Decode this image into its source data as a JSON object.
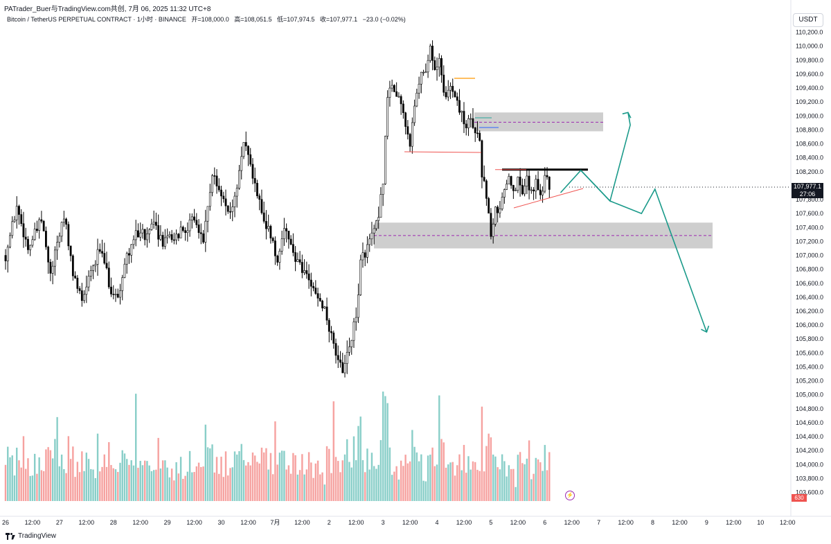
{
  "header": {
    "author_line": "PATrader_Buer与TradingView.com共创,  7月 06, 2025 11:32 UTC+8",
    "symbol": "Bitcoin / TetherUS PERPETUAL CONTRACT · 1小时 · BINANCE",
    "open": "开=108,000.0",
    "high": "高=108,051.5",
    "low": "低=107,974.5",
    "close": "收=107,977.1",
    "change": "−23.0 (−0.02%)"
  },
  "currency_button": "USDT",
  "last_price": {
    "value": "107,977.1",
    "countdown": "27:06"
  },
  "volume_tag": "630",
  "brand": "TradingView",
  "colors": {
    "up": "#26a69a",
    "down": "#ef5350",
    "candle": "#000000",
    "projection": "#1a9a8a"
  },
  "chart_data": {
    "type": "candlestick",
    "timeframe": "1小时",
    "ylim": [
      103500,
      110400
    ],
    "y_ticks": [
      103600,
      103800,
      104000,
      104200,
      104400,
      104600,
      104800,
      105000,
      105200,
      105400,
      105600,
      105800,
      106000,
      106200,
      106400,
      106600,
      106800,
      107000,
      107200,
      107400,
      107600,
      107800,
      108000,
      108200,
      108400,
      108600,
      108800,
      109000,
      109200,
      109400,
      109600,
      109800,
      110000,
      110200
    ],
    "y_tick_labels": [
      "103,600.0",
      "103,800.0",
      "104,000.0",
      "104,200.0",
      "104,400.0",
      "104,600.0",
      "104,800.0",
      "105,000.0",
      "105,200.0",
      "105,400.0",
      "105,600.0",
      "105,800.0",
      "106,000.0",
      "106,200.0",
      "106,400.0",
      "106,600.0",
      "106,800.0",
      "107,000.0",
      "107,200.0",
      "107,400.0",
      "107,600.0",
      "107,800.0",
      "108,000.0",
      "108,200.0",
      "108,400.0",
      "108,600.0",
      "108,800.0",
      "109,000.0",
      "109,200.0",
      "109,400.0",
      "109,600.0",
      "109,800.0",
      "110,000.0",
      "110,200.0"
    ],
    "x_ticks": [
      {
        "t": 0,
        "label": "26"
      },
      {
        "t": 12,
        "label": "12:00"
      },
      {
        "t": 24,
        "label": "27"
      },
      {
        "t": 36,
        "label": "12:00"
      },
      {
        "t": 48,
        "label": "28"
      },
      {
        "t": 60,
        "label": "12:00"
      },
      {
        "t": 72,
        "label": "29"
      },
      {
        "t": 84,
        "label": "12:00"
      },
      {
        "t": 96,
        "label": "30"
      },
      {
        "t": 108,
        "label": "12:00"
      },
      {
        "t": 120,
        "label": "7月"
      },
      {
        "t": 132,
        "label": "12:00"
      },
      {
        "t": 144,
        "label": "2"
      },
      {
        "t": 156,
        "label": "12:00"
      },
      {
        "t": 168,
        "label": "3"
      },
      {
        "t": 180,
        "label": "12:00"
      },
      {
        "t": 192,
        "label": "4"
      },
      {
        "t": 204,
        "label": "12:00"
      },
      {
        "t": 216,
        "label": "5"
      },
      {
        "t": 228,
        "label": "12:00"
      },
      {
        "t": 240,
        "label": "6"
      },
      {
        "t": 252,
        "label": "12:00"
      },
      {
        "t": 264,
        "label": "7"
      },
      {
        "t": 276,
        "label": "12:00"
      },
      {
        "t": 288,
        "label": "8"
      },
      {
        "t": 300,
        "label": "12:00"
      },
      {
        "t": 312,
        "label": "9"
      },
      {
        "t": 324,
        "label": "12:00"
      },
      {
        "t": 336,
        "label": "10"
      },
      {
        "t": 348,
        "label": "12:00"
      }
    ],
    "price_path": [
      [
        0,
        107000
      ],
      [
        5,
        107700
      ],
      [
        10,
        107100
      ],
      [
        16,
        107500
      ],
      [
        20,
        106700
      ],
      [
        26,
        107600
      ],
      [
        30,
        106700
      ],
      [
        34,
        106400
      ],
      [
        38,
        106800
      ],
      [
        42,
        107100
      ],
      [
        47,
        106500
      ],
      [
        50,
        106400
      ],
      [
        54,
        107000
      ],
      [
        58,
        107300
      ],
      [
        62,
        107300
      ],
      [
        66,
        107400
      ],
      [
        70,
        107200
      ],
      [
        76,
        107300
      ],
      [
        84,
        107500
      ],
      [
        88,
        107200
      ],
      [
        92,
        108200
      ],
      [
        96,
        107800
      ],
      [
        100,
        107600
      ],
      [
        103,
        108000
      ],
      [
        106,
        108700
      ],
      [
        110,
        108100
      ],
      [
        114,
        107600
      ],
      [
        118,
        107300
      ],
      [
        121,
        106900
      ],
      [
        124,
        107400
      ],
      [
        128,
        107000
      ],
      [
        132,
        106800
      ],
      [
        136,
        106600
      ],
      [
        140,
        106400
      ],
      [
        143,
        106100
      ],
      [
        146,
        105700
      ],
      [
        150,
        105300
      ],
      [
        153,
        105700
      ],
      [
        156,
        106100
      ],
      [
        158,
        106900
      ],
      [
        162,
        107200
      ],
      [
        166,
        107500
      ],
      [
        168,
        108100
      ],
      [
        170,
        109200
      ],
      [
        172,
        109500
      ],
      [
        176,
        109200
      ],
      [
        180,
        108600
      ],
      [
        182,
        109100
      ],
      [
        185,
        109600
      ],
      [
        187,
        109700
      ],
      [
        189,
        110000
      ],
      [
        191,
        109600
      ],
      [
        193,
        109800
      ],
      [
        196,
        109200
      ],
      [
        198,
        109500
      ],
      [
        201,
        109200
      ],
      [
        203,
        109000
      ],
      [
        205,
        108900
      ],
      [
        208,
        108900
      ],
      [
        211,
        108700
      ],
      [
        212,
        108200
      ],
      [
        214,
        107800
      ],
      [
        216,
        107300
      ],
      [
        218,
        107700
      ],
      [
        220,
        107600
      ],
      [
        222,
        108000
      ],
      [
        224,
        108200
      ],
      [
        226,
        107900
      ],
      [
        228,
        108100
      ],
      [
        230,
        107900
      ],
      [
        232,
        108100
      ],
      [
        234,
        107900
      ],
      [
        236,
        108100
      ],
      [
        238,
        107900
      ],
      [
        240,
        108100
      ],
      [
        242,
        108000
      ]
    ],
    "volume_range": [
      0,
      630
    ],
    "supply_zone": {
      "from": 108780,
      "to": 109050,
      "mid": 108910
    },
    "demand_zone": {
      "from": 107100,
      "to": 107470,
      "mid": 107285
    },
    "resistance_line": 108230,
    "projection_path": [
      [
        247,
        107900
      ],
      [
        256,
        108220
      ],
      [
        269,
        107780
      ],
      [
        278,
        108870
      ],
      [
        277,
        109050
      ]
    ],
    "projection_path_2": [
      [
        256,
        108220
      ],
      [
        269,
        107780
      ],
      [
        283,
        107600
      ],
      [
        289,
        107950
      ],
      [
        312,
        105900
      ]
    ]
  }
}
